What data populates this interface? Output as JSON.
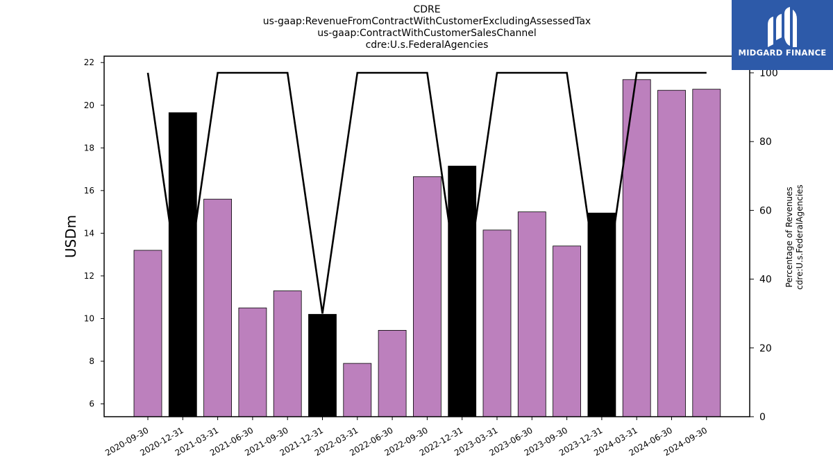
{
  "header": {
    "title_lines": [
      "CDRE",
      "us-gaap:RevenueFromContractWithCustomerExcludingAssessedTax",
      "us-gaap:ContractWithCustomerSalesChannel",
      "cdre:U.s.FederalAgencies"
    ]
  },
  "logo": {
    "text": "MIDGARD FINANCE",
    "background": "#2d5aa9"
  },
  "chart_data": {
    "type": "bar",
    "title": "CDRE\nus-gaap:RevenueFromContractWithCustomerExcludingAssessedTax\nus-gaap:ContractWithCustomerSalesChannel\ncdre:U.s.FederalAgencies",
    "categories": [
      "2020-09-30",
      "2020-12-31",
      "2021-03-31",
      "2021-06-30",
      "2021-09-30",
      "2021-12-31",
      "2022-03-31",
      "2022-06-30",
      "2022-09-30",
      "2022-12-31",
      "2023-03-31",
      "2023-06-30",
      "2023-09-30",
      "2023-12-31",
      "2024-03-31",
      "2024-06-30",
      "2024-09-30"
    ],
    "series": [
      {
        "values": [
          13.2,
          19.65,
          15.6,
          10.5,
          11.3,
          10.2,
          7.9,
          9.45,
          16.65,
          17.15,
          14.15,
          15.0,
          13.4,
          14.95,
          21.2,
          20.7,
          20.75
        ]
      },
      {
        "axis": "right",
        "type": "line",
        "values": [
          100,
          30,
          100,
          100,
          100,
          30,
          100,
          100,
          100,
          30,
          100,
          100,
          100,
          30,
          100,
          100,
          100
        ]
      }
    ],
    "ylabel": "USDm",
    "ylim": [
      5.4,
      22.3
    ],
    "yticks": [
      6,
      8,
      10,
      12,
      14,
      16,
      18,
      20,
      22
    ],
    "y2label_lines": [
      "Percentage of Revenues",
      "cdre:U.s.FederalAgencies"
    ],
    "y2lim": [
      0,
      100
    ],
    "y2ticks": [
      0,
      20,
      40,
      60,
      80,
      100
    ],
    "colors": {
      "bar": "#bc80bd",
      "bar_highlight": "#000000",
      "line": "#000000"
    },
    "highlight_categories": [
      "2020-12-31",
      "2021-12-31",
      "2022-12-31",
      "2023-12-31"
    ],
    "grid": false,
    "legend": "none"
  }
}
